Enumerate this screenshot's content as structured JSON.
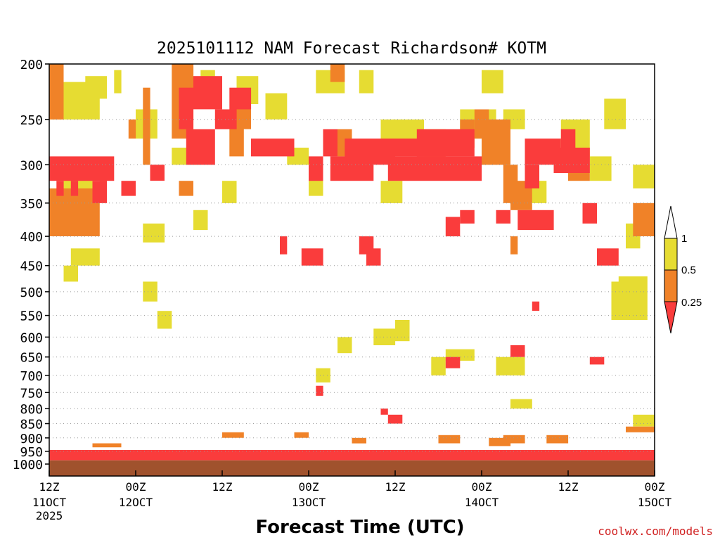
{
  "chart_data": {
    "type": "heatmap",
    "title": "2025101112 NAM Forecast Richardson# KOTM",
    "xlabel": "Forecast Time (UTC)",
    "ylabel": "",
    "credit": "coolwx.com/models",
    "x_range_hours": [
      0,
      84
    ],
    "y_levels_hpa": [
      1000,
      950,
      900,
      850,
      800,
      750,
      700,
      650,
      600,
      550,
      500,
      450,
      400,
      350,
      300,
      250,
      200
    ],
    "y_axis_scale": "log-pressure",
    "y_gridlines_hpa": [
      950,
      900,
      850,
      800,
      750,
      700,
      650,
      600,
      550,
      500,
      450,
      400,
      350,
      300,
      250
    ],
    "x_ticks": [
      {
        "h": 0,
        "label": "12Z",
        "sub": "11OCT",
        "sub2": "2025"
      },
      {
        "h": 12,
        "label": "00Z",
        "sub": "12OCT",
        "sub2": ""
      },
      {
        "h": 24,
        "label": "12Z",
        "sub": "",
        "sub2": ""
      },
      {
        "h": 36,
        "label": "00Z",
        "sub": "13OCT",
        "sub2": ""
      },
      {
        "h": 48,
        "label": "12Z",
        "sub": "",
        "sub2": ""
      },
      {
        "h": 60,
        "label": "00Z",
        "sub": "14OCT",
        "sub2": ""
      },
      {
        "h": 72,
        "label": "12Z",
        "sub": "",
        "sub2": ""
      },
      {
        "h": 84,
        "label": "00Z",
        "sub": "15OCT",
        "sub2": ""
      }
    ],
    "legend": {
      "placement": "right",
      "categories": [
        {
          "range": "> 1",
          "color": "#ffffff"
        },
        {
          "range": "0.5 - 1",
          "color": "#e6dc32"
        },
        {
          "range": "0.25 - 0.5",
          "color": "#f08228"
        },
        {
          "range": "< 0.25",
          "color": "#fa3c3c"
        }
      ],
      "labels": [
        "1",
        "0.5",
        "0.25"
      ]
    },
    "ground": {
      "from_hpa": 985,
      "color": "#a0522d"
    },
    "colors": {
      "yellow": "#e6dc32",
      "orange": "#f08228",
      "red": "#fa3c3c"
    },
    "series": [
      {
        "name": "0.5 - 1",
        "category": "yellow",
        "values": [
          [
            0,
            7,
            215,
            250
          ],
          [
            2,
            6,
            300,
            400
          ],
          [
            3,
            7,
            420,
            450
          ],
          [
            5,
            8,
            210,
            230
          ],
          [
            9,
            10,
            205,
            225
          ],
          [
            12,
            15,
            240,
            270
          ],
          [
            13,
            16,
            380,
            410
          ],
          [
            17,
            21,
            280,
            300
          ],
          [
            20,
            22,
            360,
            390
          ],
          [
            21,
            23,
            205,
            230
          ],
          [
            24,
            26,
            320,
            350
          ],
          [
            26,
            29,
            210,
            235
          ],
          [
            30,
            33,
            225,
            250
          ],
          [
            33,
            36,
            280,
            300
          ],
          [
            36,
            38,
            300,
            340
          ],
          [
            37,
            41,
            205,
            225
          ],
          [
            43,
            45,
            205,
            225
          ],
          [
            46,
            49,
            320,
            350
          ],
          [
            46,
            52,
            250,
            280
          ],
          [
            52,
            55,
            260,
            290
          ],
          [
            53,
            55,
            650,
            700
          ],
          [
            55,
            59,
            630,
            660
          ],
          [
            57,
            62,
            240,
            270
          ],
          [
            60,
            63,
            205,
            225
          ],
          [
            63,
            66,
            240,
            260
          ],
          [
            62,
            66,
            650,
            700
          ],
          [
            66,
            69,
            320,
            350
          ],
          [
            71,
            75,
            250,
            280
          ],
          [
            75,
            78,
            290,
            320
          ],
          [
            77,
            80,
            230,
            260
          ],
          [
            78,
            81,
            480,
            560
          ],
          [
            79,
            83,
            470,
            560
          ],
          [
            81,
            84,
            300,
            330
          ],
          [
            2,
            4,
            450,
            480
          ],
          [
            13,
            15,
            480,
            520
          ],
          [
            15,
            17,
            540,
            580
          ],
          [
            37,
            39,
            680,
            720
          ],
          [
            40,
            42,
            600,
            640
          ],
          [
            45,
            48,
            580,
            620
          ],
          [
            48,
            50,
            560,
            610
          ],
          [
            64,
            67,
            770,
            800
          ],
          [
            81,
            84,
            820,
            860
          ],
          [
            80,
            82,
            380,
            420
          ]
        ]
      },
      {
        "name": "0.25 - 0.5",
        "category": "orange",
        "values": [
          [
            0,
            2,
            200,
            250
          ],
          [
            0,
            7,
            330,
            400
          ],
          [
            7,
            8,
            300,
            340
          ],
          [
            11,
            12,
            250,
            270
          ],
          [
            13,
            14,
            220,
            300
          ],
          [
            17,
            20,
            200,
            270
          ],
          [
            18,
            20,
            320,
            340
          ],
          [
            25,
            27,
            250,
            290
          ],
          [
            26,
            28,
            230,
            260
          ],
          [
            39,
            41,
            200,
            215
          ],
          [
            40,
            42,
            260,
            290
          ],
          [
            57,
            59,
            250,
            280
          ],
          [
            59,
            61,
            240,
            270
          ],
          [
            60,
            64,
            250,
            300
          ],
          [
            64,
            67,
            320,
            360
          ],
          [
            63,
            65,
            300,
            350
          ],
          [
            64,
            65,
            400,
            430
          ],
          [
            72,
            75,
            280,
            320
          ],
          [
            81,
            84,
            350,
            400
          ],
          [
            63,
            66,
            890,
            920
          ],
          [
            54,
            57,
            890,
            920
          ],
          [
            61,
            64,
            900,
            930
          ],
          [
            6,
            10,
            920,
            935
          ],
          [
            24,
            27,
            880,
            900
          ],
          [
            34,
            36,
            880,
            900
          ],
          [
            42,
            44,
            900,
            920
          ],
          [
            69,
            72,
            890,
            920
          ],
          [
            80,
            84,
            860,
            880
          ]
        ]
      },
      {
        "name": "< 0.25",
        "category": "red",
        "values": [
          [
            0,
            9,
            290,
            320
          ],
          [
            1,
            2,
            320,
            340
          ],
          [
            3,
            4,
            320,
            340
          ],
          [
            6,
            8,
            320,
            350
          ],
          [
            10,
            12,
            320,
            340
          ],
          [
            14,
            16,
            300,
            320
          ],
          [
            18,
            20,
            220,
            260
          ],
          [
            20,
            24,
            210,
            240
          ],
          [
            19,
            23,
            260,
            300
          ],
          [
            23,
            26,
            240,
            260
          ],
          [
            25,
            28,
            220,
            240
          ],
          [
            28,
            34,
            270,
            290
          ],
          [
            36,
            38,
            290,
            320
          ],
          [
            38,
            40,
            260,
            290
          ],
          [
            39,
            45,
            290,
            320
          ],
          [
            41,
            48,
            270,
            300
          ],
          [
            48,
            55,
            270,
            290
          ],
          [
            47,
            60,
            290,
            320
          ],
          [
            51,
            59,
            260,
            290
          ],
          [
            57,
            59,
            360,
            380
          ],
          [
            55,
            57,
            370,
            400
          ],
          [
            62,
            64,
            360,
            380
          ],
          [
            65,
            70,
            360,
            390
          ],
          [
            66,
            71,
            270,
            300
          ],
          [
            66,
            68,
            300,
            330
          ],
          [
            70,
            75,
            280,
            310
          ],
          [
            71,
            73,
            260,
            290
          ],
          [
            76,
            79,
            420,
            450
          ],
          [
            74,
            76,
            350,
            380
          ],
          [
            32,
            33,
            400,
            430
          ],
          [
            35,
            38,
            420,
            450
          ],
          [
            43,
            45,
            400,
            430
          ],
          [
            44,
            46,
            420,
            450
          ],
          [
            55,
            57,
            650,
            680
          ],
          [
            64,
            66,
            620,
            650
          ],
          [
            67,
            68,
            520,
            540
          ],
          [
            75,
            77,
            650,
            670
          ],
          [
            47,
            49,
            820,
            850
          ],
          [
            46,
            47,
            800,
            820
          ],
          [
            37,
            38,
            730,
            760
          ],
          [
            0,
            84,
            945,
            985
          ]
        ]
      }
    ]
  }
}
